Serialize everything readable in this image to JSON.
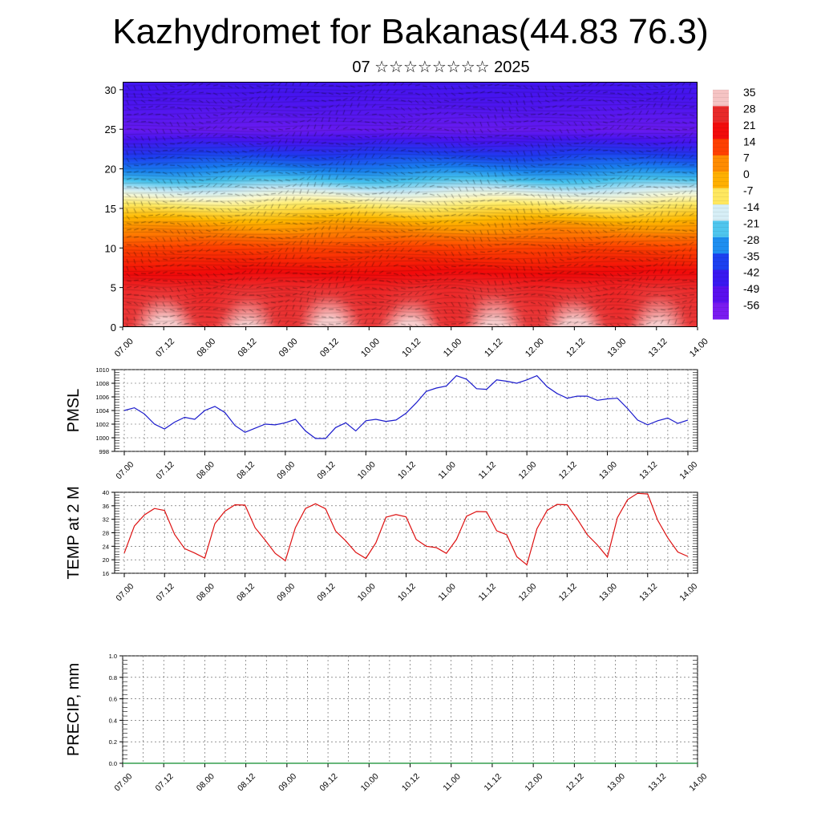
{
  "header": {
    "title": "Kazhydromet for Bakanas(44.83 76.3)",
    "subtitle": "07 ☆☆☆☆☆☆☆☆ 2025"
  },
  "colorbar": {
    "labels": [
      "35",
      "28",
      "21",
      "14",
      "7",
      "0",
      "-7",
      "-14",
      "-21",
      "-28",
      "-35",
      "-42",
      "-49",
      "-56"
    ],
    "colors": [
      "#f6c4c4",
      "#e82a2a",
      "#f20c0c",
      "#ff4000",
      "#ff8c00",
      "#ffb000",
      "#ffe860",
      "#d6eef6",
      "#4fc6ee",
      "#1e8ef0",
      "#1c40f0",
      "#3a18f0",
      "#5a10ee",
      "#7a1cf0"
    ]
  },
  "chart_data": [
    {
      "type": "heatmap",
      "name": "cross-section",
      "ylim": [
        0,
        31
      ],
      "yticks": [
        "0",
        "5",
        "10",
        "15",
        "20",
        "25",
        "30"
      ],
      "xticks": [
        "07.00",
        "07.12",
        "08.00",
        "08.12",
        "09.00",
        "09.12",
        "10.00",
        "10.12",
        "11.00",
        "11.12",
        "12.00",
        "12.12",
        "13.00",
        "13.12",
        "14.00"
      ],
      "grid": false,
      "layers": [
        {
          "level": 0,
          "value": 33
        },
        {
          "level": 5,
          "value": 28
        },
        {
          "level": 10,
          "value": 18
        },
        {
          "level": 13,
          "value": 8
        },
        {
          "level": 16,
          "value": -7
        },
        {
          "level": 18,
          "value": -18
        },
        {
          "level": 21,
          "value": -35
        },
        {
          "level": 25,
          "value": -56
        },
        {
          "level": 28,
          "value": -52
        },
        {
          "level": 31,
          "value": -49
        }
      ]
    },
    {
      "type": "line",
      "name": "pmsl",
      "ylabel": "PMSL",
      "ylim": [
        998,
        1010
      ],
      "yticks": [
        "998",
        "1000",
        "1002",
        "1004",
        "1006",
        "1008",
        "1010"
      ],
      "xticks": [
        "07.00",
        "07.12",
        "08.00",
        "08.12",
        "09.00",
        "09.12",
        "10.00",
        "10.12",
        "11.00",
        "11.12",
        "12.00",
        "12.12",
        "13.00",
        "13.12",
        "14.00"
      ],
      "grid": true,
      "color": "#1a1acc",
      "x": [
        0,
        3,
        6,
        9,
        12,
        15,
        18,
        21,
        24,
        27,
        30,
        33,
        36,
        39,
        42,
        45,
        48,
        51,
        54,
        57,
        60,
        63,
        66,
        69,
        72,
        75,
        78,
        81,
        84,
        87,
        90,
        93,
        96,
        99,
        102,
        105,
        108,
        111,
        114,
        117,
        120,
        123,
        126,
        129,
        132,
        135,
        138,
        141,
        144,
        147,
        150,
        153,
        156,
        159,
        162,
        165,
        168
      ],
      "values": [
        1004.0,
        1004.4,
        1003.5,
        1002.0,
        1001.3,
        1002.3,
        1003.0,
        1002.7,
        1004.0,
        1004.6,
        1003.7,
        1001.8,
        1000.8,
        1001.4,
        1002.0,
        1001.9,
        1002.2,
        1002.7,
        1001.0,
        999.9,
        999.9,
        1001.5,
        1002.2,
        1001.0,
        1002.5,
        1002.7,
        1002.4,
        1002.6,
        1003.6,
        1005.1,
        1006.8,
        1007.3,
        1007.6,
        1009.1,
        1008.6,
        1007.2,
        1007.1,
        1008.5,
        1008.3,
        1008.0,
        1008.5,
        1009.1,
        1007.5,
        1006.5,
        1005.8,
        1006.1,
        1006.1,
        1005.5,
        1005.7,
        1005.8,
        1004.3,
        1002.6,
        1001.9,
        1002.5,
        1002.9,
        1002.1,
        1002.6
      ]
    },
    {
      "type": "line",
      "name": "temp2m",
      "ylabel": "TEMP at 2 M",
      "ylim": [
        16,
        40
      ],
      "yticks": [
        "16",
        "20",
        "24",
        "28",
        "32",
        "36",
        "40"
      ],
      "xticks": [
        "07.00",
        "07.12",
        "08.00",
        "08.12",
        "09.00",
        "09.12",
        "10.00",
        "10.12",
        "11.00",
        "11.12",
        "12.00",
        "12.12",
        "13.00",
        "13.12",
        "14.00"
      ],
      "grid": true,
      "color": "#dd1111",
      "x": [
        0,
        3,
        6,
        9,
        12,
        15,
        18,
        21,
        24,
        27,
        30,
        33,
        36,
        39,
        42,
        45,
        48,
        51,
        54,
        57,
        60,
        63,
        66,
        69,
        72,
        75,
        78,
        81,
        84,
        87,
        90,
        93,
        96,
        99,
        102,
        105,
        108,
        111,
        114,
        117,
        120,
        123,
        126,
        129,
        132,
        135,
        138,
        141,
        144,
        147,
        150,
        153,
        156,
        159,
        162,
        165,
        168
      ],
      "values": [
        22,
        30,
        33.3,
        35.2,
        34.6,
        27.5,
        23.3,
        22,
        20.5,
        30.7,
        34.4,
        36.3,
        36.2,
        29.5,
        25.8,
        21.9,
        19.7,
        29.5,
        35.2,
        36.6,
        35.1,
        28.5,
        25.6,
        22.2,
        20.4,
        25,
        32.6,
        33.4,
        32.7,
        26,
        24,
        23.6,
        21.9,
        26,
        32.9,
        34.3,
        34.2,
        28.6,
        27.4,
        20.9,
        18.5,
        29.2,
        34.6,
        36.4,
        36.3,
        32.1,
        27.4,
        24.4,
        20.8,
        32.5,
        37.8,
        39.7,
        39.5,
        31.7,
        26.5,
        22.3,
        21
      ]
    },
    {
      "type": "line",
      "name": "precip",
      "ylabel": "PRECIP, mm",
      "ylim": [
        0,
        1
      ],
      "yticks": [
        "0.0",
        "0.2",
        "0.4",
        "0.6",
        "0.8",
        "1.0"
      ],
      "xticks": [
        "07.00",
        "07.12",
        "08.00",
        "08.12",
        "09.00",
        "09.12",
        "10.00",
        "10.12",
        "11.00",
        "11.12",
        "12.00",
        "12.12",
        "13.00",
        "13.12",
        "14.00"
      ],
      "grid": true,
      "color": "#0c8a2a",
      "x": [
        0,
        168
      ],
      "values": [
        0,
        0
      ]
    }
  ]
}
